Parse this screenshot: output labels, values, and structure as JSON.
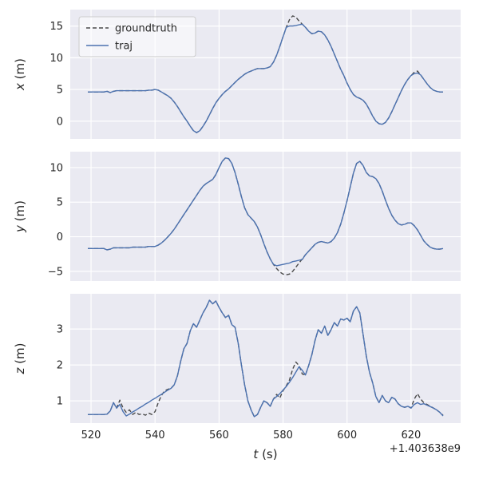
{
  "figure": {
    "xlabel": "t (s)",
    "offset_text": "+1.403638e9",
    "xlim": [
      513.5,
      635.5
    ],
    "xticks": [
      520,
      540,
      560,
      580,
      600,
      620
    ],
    "colors": {
      "panel_bg": "#eaeaf2",
      "grid": "#ffffff",
      "text": "#262626",
      "groundtruth": "#4a4a4a",
      "traj": "#4c72b0",
      "legend_border": "#cccccc"
    },
    "legend": {
      "entries": [
        {
          "label": "groundtruth",
          "style": "dashed",
          "color": "#4a4a4a"
        },
        {
          "label": "traj",
          "style": "solid",
          "color": "#4c72b0"
        }
      ]
    },
    "t": [
      519,
      520,
      521,
      522,
      523,
      524,
      525,
      526,
      527,
      528,
      529,
      530,
      531,
      532,
      533,
      534,
      535,
      536,
      537,
      538,
      539,
      540,
      541,
      542,
      543,
      544,
      545,
      546,
      547,
      548,
      549,
      550,
      551,
      552,
      553,
      554,
      555,
      556,
      557,
      558,
      559,
      560,
      561,
      562,
      563,
      564,
      565,
      566,
      567,
      568,
      569,
      570,
      571,
      572,
      573,
      574,
      575,
      576,
      577,
      578,
      579,
      580,
      581,
      582,
      583,
      584,
      585,
      586,
      587,
      588,
      589,
      590,
      591,
      592,
      593,
      594,
      595,
      596,
      597,
      598,
      599,
      600,
      601,
      602,
      603,
      604,
      605,
      606,
      607,
      608,
      609,
      610,
      611,
      612,
      613,
      614,
      615,
      616,
      617,
      618,
      619,
      620,
      621,
      622,
      623,
      624,
      625,
      626,
      627,
      628,
      629,
      630
    ]
  },
  "chart_data": [
    {
      "type": "line",
      "ylabel": "x (m)",
      "ylim": [
        -2.8,
        17.6
      ],
      "yticks": [
        0,
        5,
        10,
        15
      ],
      "series": [
        {
          "name": "groundtruth",
          "style": "dashed",
          "color": "#4a4a4a",
          "values": [
            4.6,
            4.6,
            4.6,
            4.6,
            4.6,
            4.6,
            4.7,
            4.5,
            4.7,
            4.8,
            4.8,
            4.8,
            4.8,
            4.8,
            4.8,
            4.8,
            4.8,
            4.8,
            4.8,
            4.9,
            4.9,
            5.0,
            4.9,
            4.6,
            4.3,
            4.0,
            3.6,
            3.0,
            2.3,
            1.5,
            0.7,
            0.0,
            -0.8,
            -1.5,
            -1.8,
            -1.5,
            -0.8,
            0.0,
            1.0,
            2.0,
            2.9,
            3.6,
            4.2,
            4.7,
            5.1,
            5.6,
            6.1,
            6.6,
            7.0,
            7.4,
            7.7,
            7.9,
            8.1,
            8.3,
            8.3,
            8.3,
            8.4,
            8.6,
            9.3,
            10.4,
            11.8,
            13.3,
            14.8,
            16.0,
            16.6,
            16.4,
            15.8,
            15.3,
            14.8,
            14.2,
            13.8,
            13.9,
            14.2,
            14.1,
            13.6,
            12.8,
            11.8,
            10.6,
            9.4,
            8.2,
            7.2,
            6.0,
            5.0,
            4.2,
            3.8,
            3.6,
            3.3,
            2.7,
            1.8,
            0.8,
            0.0,
            -0.4,
            -0.5,
            -0.2,
            0.5,
            1.5,
            2.6,
            3.7,
            4.8,
            5.8,
            6.6,
            7.2,
            7.7,
            7.9,
            7.3,
            6.6,
            5.9,
            5.3,
            4.9,
            4.7,
            4.6,
            4.6
          ]
        },
        {
          "name": "traj",
          "style": "solid",
          "color": "#4c72b0",
          "values": [
            4.6,
            4.6,
            4.6,
            4.6,
            4.6,
            4.6,
            4.7,
            4.5,
            4.7,
            4.8,
            4.8,
            4.8,
            4.8,
            4.8,
            4.8,
            4.8,
            4.8,
            4.8,
            4.8,
            4.9,
            4.9,
            5.0,
            4.9,
            4.6,
            4.3,
            4.0,
            3.6,
            3.0,
            2.3,
            1.5,
            0.7,
            0.0,
            -0.8,
            -1.5,
            -1.8,
            -1.5,
            -0.8,
            0.0,
            1.0,
            2.0,
            2.9,
            3.6,
            4.2,
            4.7,
            5.1,
            5.6,
            6.1,
            6.6,
            7.0,
            7.4,
            7.7,
            7.9,
            8.1,
            8.3,
            8.3,
            8.3,
            8.4,
            8.6,
            9.3,
            10.4,
            11.8,
            13.3,
            14.8,
            15.0,
            15.0,
            15.1,
            15.2,
            15.3,
            14.8,
            14.2,
            13.8,
            13.9,
            14.2,
            14.1,
            13.6,
            12.8,
            11.8,
            10.6,
            9.4,
            8.2,
            7.2,
            6.0,
            5.0,
            4.2,
            3.8,
            3.6,
            3.3,
            2.7,
            1.8,
            0.8,
            0.0,
            -0.4,
            -0.5,
            -0.2,
            0.5,
            1.5,
            2.6,
            3.7,
            4.8,
            5.8,
            6.6,
            7.2,
            7.5,
            7.6,
            7.3,
            6.6,
            5.9,
            5.3,
            4.9,
            4.7,
            4.6,
            4.6
          ]
        }
      ]
    },
    {
      "type": "line",
      "ylabel": "y (m)",
      "ylim": [
        -6.4,
        12.3
      ],
      "yticks": [
        -5,
        0,
        5,
        10
      ],
      "series": [
        {
          "name": "groundtruth",
          "style": "dashed",
          "color": "#4a4a4a",
          "values": [
            -1.7,
            -1.7,
            -1.7,
            -1.7,
            -1.7,
            -1.7,
            -1.9,
            -1.8,
            -1.6,
            -1.6,
            -1.6,
            -1.6,
            -1.6,
            -1.6,
            -1.5,
            -1.5,
            -1.5,
            -1.5,
            -1.5,
            -1.4,
            -1.4,
            -1.4,
            -1.2,
            -0.9,
            -0.5,
            0.0,
            0.5,
            1.1,
            1.8,
            2.5,
            3.2,
            3.9,
            4.6,
            5.3,
            6.0,
            6.7,
            7.3,
            7.7,
            8.0,
            8.3,
            9.0,
            10.0,
            10.9,
            11.4,
            11.3,
            10.6,
            9.3,
            7.6,
            5.8,
            4.2,
            3.2,
            2.7,
            2.2,
            1.4,
            0.3,
            -1.0,
            -2.2,
            -3.2,
            -4.0,
            -4.6,
            -5.1,
            -5.4,
            -5.5,
            -5.4,
            -5.0,
            -4.4,
            -3.8,
            -3.2,
            -2.6,
            -2.1,
            -1.6,
            -1.1,
            -0.8,
            -0.7,
            -0.8,
            -0.9,
            -0.7,
            -0.2,
            0.6,
            1.8,
            3.4,
            5.2,
            7.2,
            9.2,
            10.6,
            10.9,
            10.3,
            9.3,
            8.8,
            8.7,
            8.4,
            7.7,
            6.6,
            5.3,
            4.1,
            3.1,
            2.4,
            1.9,
            1.7,
            1.8,
            2.0,
            2.0,
            1.6,
            1.0,
            0.2,
            -0.6,
            -1.1,
            -1.5,
            -1.7,
            -1.8,
            -1.8,
            -1.7
          ]
        },
        {
          "name": "traj",
          "style": "solid",
          "color": "#4c72b0",
          "values": [
            -1.7,
            -1.7,
            -1.7,
            -1.7,
            -1.7,
            -1.7,
            -1.9,
            -1.8,
            -1.6,
            -1.6,
            -1.6,
            -1.6,
            -1.6,
            -1.6,
            -1.5,
            -1.5,
            -1.5,
            -1.5,
            -1.5,
            -1.4,
            -1.4,
            -1.4,
            -1.2,
            -0.9,
            -0.5,
            0.0,
            0.5,
            1.1,
            1.8,
            2.5,
            3.2,
            3.9,
            4.6,
            5.3,
            6.0,
            6.7,
            7.3,
            7.7,
            8.0,
            8.3,
            9.0,
            10.0,
            10.9,
            11.4,
            11.3,
            10.6,
            9.3,
            7.6,
            5.8,
            4.2,
            3.2,
            2.7,
            2.2,
            1.4,
            0.3,
            -1.0,
            -2.2,
            -3.2,
            -4.0,
            -4.2,
            -4.1,
            -4.0,
            -3.9,
            -3.8,
            -3.6,
            -3.5,
            -3.4,
            -3.3,
            -2.6,
            -2.1,
            -1.6,
            -1.1,
            -0.8,
            -0.7,
            -0.8,
            -0.9,
            -0.7,
            -0.2,
            0.6,
            1.8,
            3.4,
            5.2,
            7.2,
            9.2,
            10.6,
            10.9,
            10.3,
            9.3,
            8.8,
            8.7,
            8.4,
            7.7,
            6.6,
            5.3,
            4.1,
            3.1,
            2.4,
            1.9,
            1.7,
            1.8,
            2.0,
            2.0,
            1.6,
            1.0,
            0.2,
            -0.6,
            -1.1,
            -1.5,
            -1.7,
            -1.8,
            -1.8,
            -1.7
          ]
        }
      ]
    },
    {
      "type": "line",
      "ylabel": "z (m)",
      "ylim": [
        0.38,
        3.98
      ],
      "yticks": [
        1,
        2,
        3
      ],
      "series": [
        {
          "name": "groundtruth",
          "style": "dashed",
          "color": "#4a4a4a",
          "values": [
            0.62,
            0.62,
            0.62,
            0.62,
            0.62,
            0.62,
            0.63,
            0.72,
            0.95,
            0.8,
            1.02,
            0.8,
            0.68,
            0.75,
            0.62,
            0.68,
            0.62,
            0.64,
            0.6,
            0.66,
            0.62,
            0.7,
            0.95,
            1.15,
            1.28,
            1.32,
            1.35,
            1.45,
            1.7,
            2.1,
            2.45,
            2.6,
            2.95,
            3.15,
            3.05,
            3.25,
            3.45,
            3.6,
            3.8,
            3.7,
            3.78,
            3.6,
            3.45,
            3.32,
            3.38,
            3.12,
            3.05,
            2.6,
            2.0,
            1.45,
            1.0,
            0.75,
            0.56,
            0.62,
            0.82,
            1.0,
            0.95,
            0.85,
            1.05,
            1.18,
            1.08,
            1.28,
            1.42,
            1.58,
            1.88,
            2.08,
            1.98,
            1.75,
            1.72,
            1.98,
            2.28,
            2.68,
            2.98,
            2.88,
            3.08,
            2.82,
            2.98,
            3.18,
            3.08,
            3.28,
            3.25,
            3.3,
            3.2,
            3.5,
            3.62,
            3.45,
            2.85,
            2.25,
            1.8,
            1.5,
            1.12,
            0.95,
            1.15,
            1.0,
            0.95,
            1.1,
            1.05,
            0.92,
            0.85,
            0.82,
            0.85,
            0.8,
            1.05,
            1.2,
            1.05,
            0.95,
            0.9,
            0.85,
            0.8,
            0.75,
            0.68,
            0.6
          ]
        },
        {
          "name": "traj",
          "style": "solid",
          "color": "#4c72b0",
          "values": [
            0.62,
            0.62,
            0.62,
            0.62,
            0.62,
            0.62,
            0.63,
            0.72,
            0.95,
            0.8,
            0.9,
            0.7,
            0.58,
            0.63,
            0.69,
            0.74,
            0.8,
            0.85,
            0.91,
            0.96,
            1.02,
            1.07,
            1.13,
            1.18,
            1.24,
            1.3,
            1.35,
            1.45,
            1.7,
            2.1,
            2.45,
            2.6,
            2.95,
            3.15,
            3.05,
            3.25,
            3.45,
            3.6,
            3.8,
            3.7,
            3.78,
            3.6,
            3.45,
            3.32,
            3.38,
            3.12,
            3.05,
            2.6,
            2.0,
            1.45,
            1.0,
            0.75,
            0.56,
            0.62,
            0.82,
            1.0,
            0.95,
            0.85,
            1.05,
            1.12,
            1.2,
            1.3,
            1.4,
            1.52,
            1.65,
            1.8,
            1.95,
            1.85,
            1.72,
            1.98,
            2.28,
            2.68,
            2.98,
            2.88,
            3.08,
            2.82,
            2.98,
            3.18,
            3.08,
            3.28,
            3.25,
            3.3,
            3.2,
            3.5,
            3.62,
            3.45,
            2.85,
            2.25,
            1.8,
            1.5,
            1.12,
            0.95,
            1.15,
            1.0,
            0.95,
            1.1,
            1.05,
            0.92,
            0.85,
            0.82,
            0.85,
            0.8,
            0.9,
            0.95,
            0.9,
            0.92,
            0.88,
            0.84,
            0.8,
            0.75,
            0.68,
            0.58
          ]
        }
      ]
    }
  ]
}
